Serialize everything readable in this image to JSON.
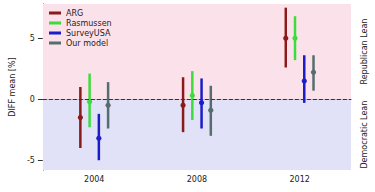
{
  "chart_data": {
    "type": "errorbar",
    "y_label": "DIFF mean [%]",
    "categories": [
      "2004",
      "2008",
      "2012"
    ],
    "ylim": [
      -5.8,
      7.8
    ],
    "yticks": [
      -5,
      0,
      5
    ],
    "legend": "upper left",
    "grid": false,
    "marker": "circle",
    "series": [
      {
        "name": "ARG",
        "color": "#8b1a1a",
        "values": [
          -1.5,
          -0.5,
          5.0
        ],
        "low": [
          -4.0,
          -2.7,
          2.6
        ],
        "high": [
          1.0,
          1.8,
          7.5
        ]
      },
      {
        "name": "Rasmussen",
        "color": "#3ddc3d",
        "values": [
          -0.2,
          0.3,
          5.0
        ],
        "low": [
          -2.3,
          -1.7,
          3.2
        ],
        "high": [
          2.1,
          2.3,
          6.8
        ]
      },
      {
        "name": "SurveyUSA",
        "color": "#1c1cc8",
        "values": [
          -3.2,
          -0.3,
          1.5
        ],
        "low": [
          -5.0,
          -2.4,
          -0.3
        ],
        "high": [
          -1.2,
          1.7,
          3.6
        ]
      },
      {
        "name": "Our model",
        "color": "#566d6d",
        "values": [
          -0.5,
          -0.9,
          2.2
        ],
        "low": [
          -2.4,
          -3.0,
          0.7
        ],
        "high": [
          1.4,
          1.1,
          3.6
        ]
      }
    ],
    "regions": [
      {
        "label": "Republican Lean",
        "from": 0,
        "to": 7.8,
        "color": "#fbe2ea"
      },
      {
        "label": "Democratic Lean",
        "from": -5.8,
        "to": 0,
        "color": "#e1e1f7"
      }
    ],
    "reference_line": {
      "y": 0,
      "line_style": "dashed",
      "color": "#333333"
    }
  }
}
